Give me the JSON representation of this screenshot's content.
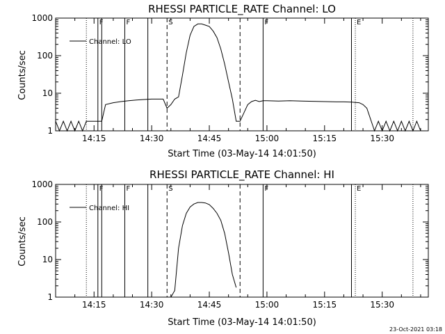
{
  "chart_data": [
    {
      "type": "line",
      "title": "RHESSI PARTICLE_RATE Channel: LO",
      "xlabel": "Start Time (03-May-14 14:01:50)",
      "ylabel": "Counts/sec",
      "yscale": "log",
      "ylim": [
        1,
        1000
      ],
      "xlim": [
        "14:05",
        "15:42"
      ],
      "yticks": [
        "1",
        "10",
        "100",
        "1000"
      ],
      "xticks": [
        "14:15",
        "14:30",
        "14:45",
        "15:00",
        "15:15",
        "15:30"
      ],
      "legend": {
        "placement": "top-left",
        "entries": [
          "Channel: LO"
        ]
      },
      "grid": false,
      "series": [
        {
          "name": "Channel: LO",
          "x": [
            "14:05",
            "14:06",
            "14:07",
            "14:08",
            "14:09",
            "14:10",
            "14:11",
            "14:12",
            "14:13",
            "14:14",
            "14:15",
            "14:16",
            "14:17",
            "14:18",
            "14:20",
            "14:22",
            "14:24",
            "14:26",
            "14:28",
            "14:30",
            "14:32",
            "14:33",
            "14:34",
            "14:35",
            "14:36",
            "14:37",
            "14:38",
            "14:39",
            "14:40",
            "14:41",
            "14:42",
            "14:43",
            "14:44",
            "14:45",
            "14:46",
            "14:47",
            "14:48",
            "14:49",
            "14:50",
            "14:51",
            "14:52",
            "14:53",
            "14:54",
            "14:55",
            "14:56",
            "14:57",
            "14:58",
            "14:59",
            "15:00",
            "15:03",
            "15:06",
            "15:09",
            "15:12",
            "15:15",
            "15:18",
            "15:20",
            "15:22",
            "15:24",
            "15:25",
            "15:26",
            "15:27",
            "15:28",
            "15:29",
            "15:30",
            "15:31",
            "15:32",
            "15:33",
            "15:34",
            "15:35",
            "15:36",
            "15:37",
            "15:38",
            "15:39",
            "15:40"
          ],
          "y": [
            1.8,
            1,
            1.8,
            1,
            1.8,
            1,
            1.8,
            1,
            1.8,
            1.8,
            1.8,
            1.8,
            1.8,
            5,
            5.6,
            6,
            6.3,
            6.6,
            6.8,
            7,
            7,
            7,
            4,
            5,
            7,
            8,
            30,
            120,
            350,
            600,
            700,
            700,
            650,
            600,
            450,
            300,
            150,
            60,
            20,
            7,
            1.8,
            1.8,
            3,
            5,
            6,
            6.5,
            6,
            6.3,
            6.3,
            6.2,
            6.3,
            6.2,
            6.1,
            6,
            5.9,
            5.9,
            5.8,
            5.6,
            5,
            4,
            2,
            1,
            1.8,
            1,
            1.8,
            1,
            1.8,
            1,
            1.8,
            1,
            1.8,
            1,
            1.8,
            1
          ]
        }
      ],
      "vertical_markers": [
        {
          "time": "14:13",
          "style": "dotted"
        },
        {
          "time": "14:16",
          "style": "solid",
          "label": "F"
        },
        {
          "time": "14:17",
          "style": "solid"
        },
        {
          "time": "14:23",
          "style": "solid",
          "label": "F"
        },
        {
          "time": "14:29",
          "style": "solid"
        },
        {
          "time": "14:34",
          "style": "dashed",
          "label": "S"
        },
        {
          "time": "14:53",
          "style": "dashed"
        },
        {
          "time": "14:59",
          "style": "solid",
          "label": "F"
        },
        {
          "time": "15:22",
          "style": "solid"
        },
        {
          "time": "15:23",
          "style": "dotted",
          "label": "E"
        },
        {
          "time": "15:38",
          "style": "dotted"
        }
      ]
    },
    {
      "type": "line",
      "title": "RHESSI PARTICLE_RATE Channel: HI",
      "xlabel": "Start Time (03-May-14 14:01:50)",
      "ylabel": "Counts/sec",
      "yscale": "log",
      "ylim": [
        1,
        1000
      ],
      "xlim": [
        "14:05",
        "15:42"
      ],
      "yticks": [
        "1",
        "10",
        "100",
        "1000"
      ],
      "xticks": [
        "14:15",
        "14:30",
        "14:45",
        "15:00",
        "15:15",
        "15:30"
      ],
      "legend": {
        "placement": "top-left",
        "entries": [
          "Channel: HI"
        ]
      },
      "grid": false,
      "series": [
        {
          "name": "Channel: HI",
          "x": [
            "14:35",
            "14:36",
            "14:37",
            "14:38",
            "14:39",
            "14:40",
            "14:41",
            "14:42",
            "14:43",
            "14:44",
            "14:45",
            "14:46",
            "14:47",
            "14:48",
            "14:49",
            "14:50",
            "14:51",
            "14:52"
          ],
          "y": [
            1,
            1.5,
            20,
            80,
            170,
            250,
            300,
            330,
            330,
            320,
            290,
            230,
            170,
            110,
            50,
            15,
            4,
            1.8
          ]
        }
      ],
      "vertical_markers": [
        {
          "time": "14:13",
          "style": "dotted"
        },
        {
          "time": "14:16",
          "style": "solid",
          "label": "F"
        },
        {
          "time": "14:17",
          "style": "solid"
        },
        {
          "time": "14:23",
          "style": "solid",
          "label": "F"
        },
        {
          "time": "14:29",
          "style": "solid"
        },
        {
          "time": "14:34",
          "style": "dashed",
          "label": "S"
        },
        {
          "time": "14:53",
          "style": "dashed"
        },
        {
          "time": "14:59",
          "style": "solid",
          "label": "F"
        },
        {
          "time": "15:22",
          "style": "solid"
        },
        {
          "time": "15:23",
          "style": "dotted",
          "label": "E"
        },
        {
          "time": "15:38",
          "style": "dotted"
        }
      ]
    }
  ],
  "footer": {
    "timestamp": "23-Oct-2021 03:18"
  }
}
